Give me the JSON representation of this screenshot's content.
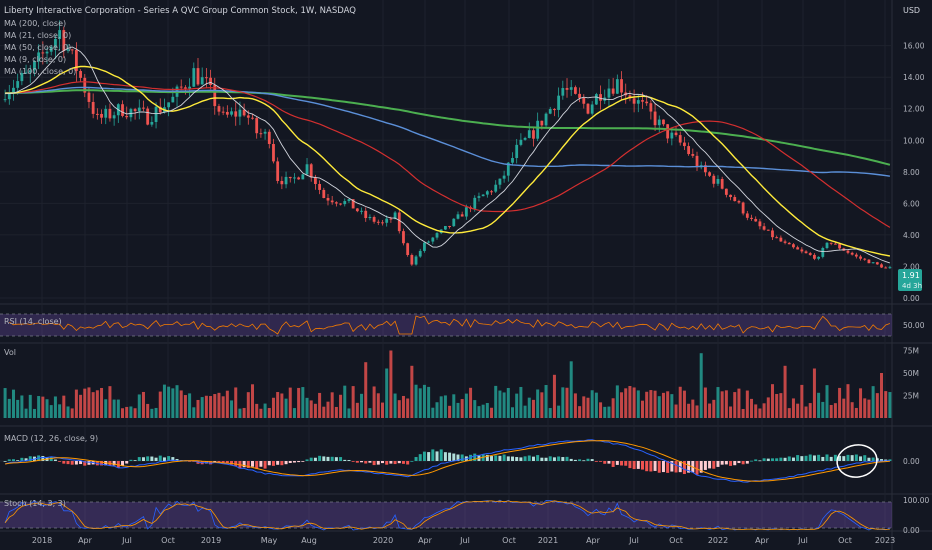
{
  "header": {
    "title": "Liberty Interactive Corporation - Series A QVC Group Common Stock, 1W, NASDAQ",
    "currency": "USD"
  },
  "indicators": {
    "ma": [
      "MA (200, close)",
      "MA (21, close, 0)",
      "MA (50, close, 0)",
      "MA (9, close, 0)",
      "MA (100, close, 0)"
    ],
    "rsi": "RSI (14, close)",
    "vol": "Vol",
    "macd": "MACD (12, 26, close, 9)",
    "stoch": "Stoch (14, 3, 3)"
  },
  "price_badge": {
    "value": "1.91",
    "countdown": "4d 3h"
  },
  "colors": {
    "bg": "#131722",
    "up": "#26a69a",
    "down": "#ef5350",
    "ma200": "#4caf50",
    "ma100": "#5b8fd8",
    "ma50": "#d32f2f",
    "ma21": "#ffeb3b",
    "ma9": "#d1d4dc",
    "rsi_band": "#7e57c2",
    "macd_line": "#2962ff",
    "signal_line": "#ff9800"
  },
  "chart_data": {
    "type": "candlestick",
    "x_ticks": [
      "2018",
      "Apr",
      "Jul",
      "Oct",
      "2019",
      "May",
      "Aug",
      "2020",
      "Apr",
      "Jul",
      "Oct",
      "2021",
      "Apr",
      "Jul",
      "Oct",
      "2022",
      "Apr",
      "Jul",
      "Oct",
      "2023"
    ],
    "price_axis": [
      "16.00",
      "14.00",
      "12.00",
      "10.00",
      "8.00",
      "6.00",
      "4.00",
      "2.00",
      "0.00"
    ],
    "rsi_axis": [
      "50.00"
    ],
    "vol_axis": [
      "75M",
      "50M",
      "25M"
    ],
    "macd_axis": [
      "0.00"
    ],
    "stoch_axis": [
      "100.00",
      "0.00"
    ],
    "price_anchors": [
      [
        0,
        13.2
      ],
      [
        6,
        14.2
      ],
      [
        10,
        15.8
      ],
      [
        13,
        16.9
      ],
      [
        17,
        14.6
      ],
      [
        22,
        11.3
      ],
      [
        28,
        12.0
      ],
      [
        34,
        11.5
      ],
      [
        40,
        12.6
      ],
      [
        45,
        14.3
      ],
      [
        48,
        13.5
      ],
      [
        52,
        11.4
      ],
      [
        57,
        11.9
      ],
      [
        60,
        10.5
      ],
      [
        63,
        10.2
      ],
      [
        65,
        7.6
      ],
      [
        68,
        7.3
      ],
      [
        72,
        8.4
      ],
      [
        76,
        6.4
      ],
      [
        82,
        6.0
      ],
      [
        86,
        5.1
      ],
      [
        90,
        4.7
      ],
      [
        93,
        5.2
      ],
      [
        95,
        3.4
      ],
      [
        97,
        2.2
      ],
      [
        100,
        3.4
      ],
      [
        106,
        4.6
      ],
      [
        112,
        6.1
      ],
      [
        118,
        7.3
      ],
      [
        122,
        9.4
      ],
      [
        126,
        10.5
      ],
      [
        130,
        12.0
      ],
      [
        133,
        13.3
      ],
      [
        136,
        12.6
      ],
      [
        139,
        12.1
      ],
      [
        142,
        13.1
      ],
      [
        146,
        13.7
      ],
      [
        150,
        12.6
      ],
      [
        154,
        11.6
      ],
      [
        158,
        10.4
      ],
      [
        162,
        9.6
      ],
      [
        166,
        8.1
      ],
      [
        170,
        7.3
      ],
      [
        174,
        6.2
      ],
      [
        178,
        4.9
      ],
      [
        182,
        4.1
      ],
      [
        186,
        3.4
      ],
      [
        190,
        2.9
      ],
      [
        194,
        2.5
      ],
      [
        196,
        3.6
      ],
      [
        199,
        3.2
      ],
      [
        203,
        2.6
      ],
      [
        207,
        2.2
      ],
      [
        210,
        1.9
      ]
    ],
    "big_volume_weeks": [
      [
        86,
        62
      ],
      [
        91,
        55
      ],
      [
        92,
        75
      ],
      [
        97,
        58
      ],
      [
        131,
        48
      ],
      [
        135,
        63
      ],
      [
        166,
        72
      ],
      [
        186,
        58
      ],
      [
        193,
        55
      ],
      [
        209,
        50
      ]
    ],
    "macd_anchors": [
      [
        0,
        -0.1
      ],
      [
        10,
        0.15
      ],
      [
        18,
        0.0
      ],
      [
        28,
        -0.25
      ],
      [
        40,
        0.05
      ],
      [
        52,
        -0.1
      ],
      [
        62,
        -0.45
      ],
      [
        70,
        -0.55
      ],
      [
        80,
        -0.3
      ],
      [
        96,
        -0.55
      ],
      [
        104,
        -0.1
      ],
      [
        116,
        0.3
      ],
      [
        126,
        0.55
      ],
      [
        134,
        0.7
      ],
      [
        140,
        0.75
      ],
      [
        148,
        0.55
      ],
      [
        156,
        0.1
      ],
      [
        166,
        -0.55
      ],
      [
        176,
        -0.75
      ],
      [
        186,
        -0.6
      ],
      [
        196,
        -0.3
      ],
      [
        204,
        -0.05
      ],
      [
        210,
        0.0
      ]
    ],
    "ylim_price": [
      0,
      17.5
    ]
  }
}
